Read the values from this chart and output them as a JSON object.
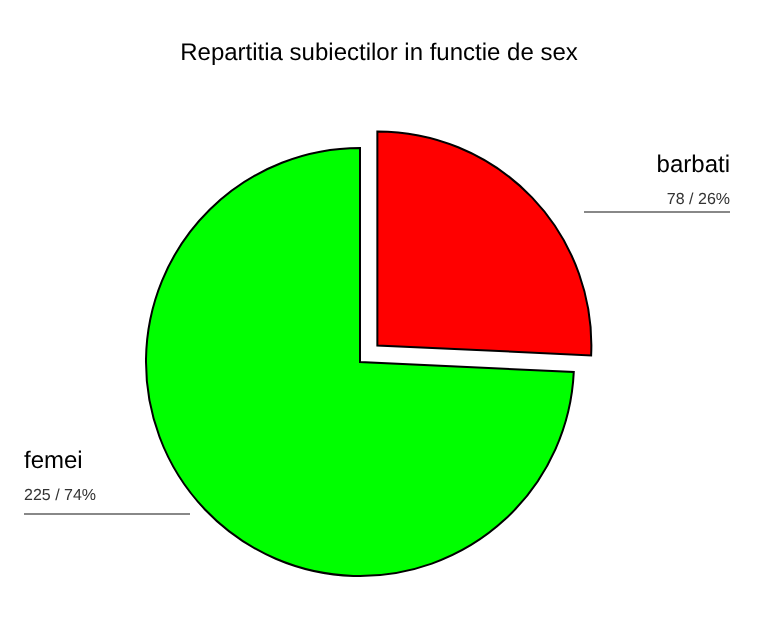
{
  "chart_data": {
    "type": "pie",
    "title": "Repartitia subiectilor in functie de sex",
    "categories": [
      "barbati",
      "femei"
    ],
    "values": [
      78,
      225
    ],
    "colors": [
      "#ff0000",
      "#00ff00"
    ],
    "value_labels": [
      "78 / 26%",
      "225 / 74%"
    ]
  }
}
